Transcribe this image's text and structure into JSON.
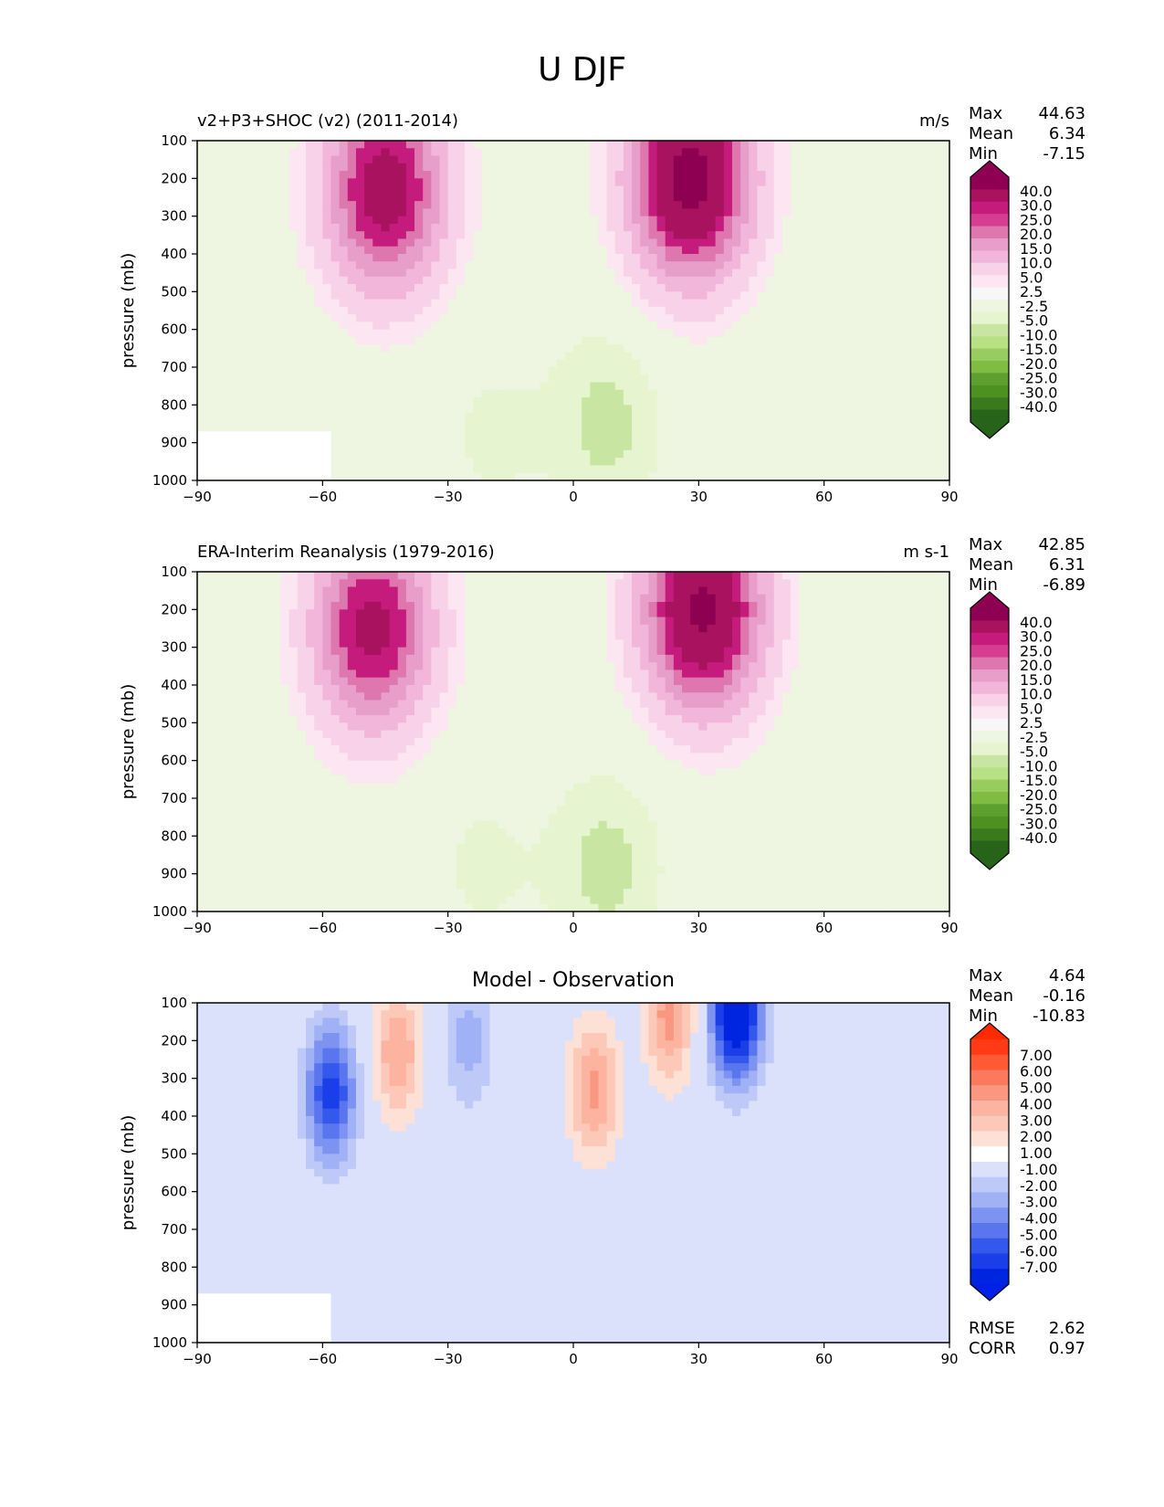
{
  "figure": {
    "title": "U DJF"
  },
  "panels": [
    {
      "title": "v2+P3+SHOC (v2) (2011-2014)",
      "units": "m/s",
      "stats": [
        {
          "label": "Max",
          "value": "44.63"
        },
        {
          "label": "Mean",
          "value": "6.34"
        },
        {
          "label": "Min",
          "value": "-7.15"
        }
      ],
      "colorbar": {
        "labels": [
          "40.0",
          "30.0",
          "25.0",
          "20.0",
          "15.0",
          "10.0",
          "5.0",
          "2.5",
          "-2.5",
          "-5.0",
          "-10.0",
          "-15.0",
          "-20.0",
          "-25.0",
          "-30.0",
          "-40.0"
        ],
        "colors": [
          "#8e0152",
          "#a8125e",
          "#c51b7d",
          "#d53d91",
          "#de77ae",
          "#e79fc9",
          "#f1b6da",
          "#f8d2e8",
          "#fbe6f1",
          "#f7f7f7",
          "#eef5e1",
          "#e6f5d0",
          "#c8e6a1",
          "#b8e186",
          "#98cc5f",
          "#7fbc41",
          "#5f9e30",
          "#4d9221",
          "#3a7a1c",
          "#276419"
        ],
        "extend_top": "#8e0152",
        "extend_bottom": "#276419"
      }
    },
    {
      "title": "ERA-Interim Reanalysis (1979-2016)",
      "units": "m s-1",
      "stats": [
        {
          "label": "Max",
          "value": "42.85"
        },
        {
          "label": "Mean",
          "value": "6.31"
        },
        {
          "label": "Min",
          "value": "-6.89"
        }
      ],
      "colorbar": {
        "labels": [
          "40.0",
          "30.0",
          "25.0",
          "20.0",
          "15.0",
          "10.0",
          "5.0",
          "2.5",
          "-2.5",
          "-5.0",
          "-10.0",
          "-15.0",
          "-20.0",
          "-25.0",
          "-30.0",
          "-40.0"
        ],
        "colors": [
          "#8e0152",
          "#a8125e",
          "#c51b7d",
          "#d53d91",
          "#de77ae",
          "#e79fc9",
          "#f1b6da",
          "#f8d2e8",
          "#fbe6f1",
          "#f7f7f7",
          "#eef5e1",
          "#e6f5d0",
          "#c8e6a1",
          "#b8e186",
          "#98cc5f",
          "#7fbc41",
          "#5f9e30",
          "#4d9221",
          "#3a7a1c",
          "#276419"
        ],
        "extend_top": "#8e0152",
        "extend_bottom": "#276419"
      }
    },
    {
      "title": "Model - Observation",
      "units": "",
      "stats": [
        {
          "label": "Max",
          "value": "4.64"
        },
        {
          "label": "Mean",
          "value": "-0.16"
        },
        {
          "label": "Min",
          "value": "-10.83"
        }
      ],
      "extra": [
        {
          "label": "RMSE",
          "value": "2.62"
        },
        {
          "label": "CORR",
          "value": "0.97"
        }
      ],
      "colorbar": {
        "labels": [
          "7.00",
          "6.00",
          "5.00",
          "4.00",
          "3.00",
          "2.00",
          "1.00",
          "-1.00",
          "-2.00",
          "-3.00",
          "-4.00",
          "-5.00",
          "-6.00",
          "-7.00"
        ],
        "colors": [
          "#ff3a14",
          "#ff5a36",
          "#fb7a5e",
          "#fa9780",
          "#fcb3a0",
          "#fcc8b8",
          "#fde0d6",
          "#ffffff",
          "#dbe1fb",
          "#bec9f8",
          "#a0b1f5",
          "#7d93f2",
          "#5a76ef",
          "#3458ec",
          "#1a3ee8",
          "#0025e0"
        ],
        "extend_top": "#ff2a00",
        "extend_bottom": "#0020e8"
      }
    }
  ],
  "chart_data": [
    {
      "type": "contour",
      "title": "v2+P3+SHOC (v2) (2011-2014)",
      "xlabel": "",
      "ylabel": "pressure (mb)",
      "x_ticks": [
        -90,
        -60,
        -30,
        0,
        30,
        60,
        90
      ],
      "y_ticks": [
        100,
        200,
        300,
        400,
        500,
        600,
        700,
        800,
        900,
        1000
      ],
      "xlim": [
        -90,
        90
      ],
      "ylim": [
        1000,
        100
      ],
      "levels": [
        -40,
        -30,
        -25,
        -20,
        -15,
        -10,
        -5,
        -2.5,
        2.5,
        5,
        10,
        15,
        20,
        25,
        30,
        40
      ],
      "units": "m/s",
      "max": 44.63,
      "mean": 6.34,
      "min": -7.15,
      "features": [
        {
          "label": "southern jet",
          "lat": -45,
          "p": 230,
          "value": 35
        },
        {
          "label": "northern jet",
          "lat": 28,
          "p": 200,
          "value": 44
        },
        {
          "label": "tropical easterlies",
          "lat": 8,
          "p": 850,
          "value": -6
        },
        {
          "label": "subtropical easterlies",
          "lat": -20,
          "p": 880,
          "value": -3
        }
      ]
    },
    {
      "type": "contour",
      "title": "ERA-Interim Reanalysis (1979-2016)",
      "xlabel": "",
      "ylabel": "pressure (mb)",
      "x_ticks": [
        -90,
        -60,
        -30,
        0,
        30,
        60,
        90
      ],
      "y_ticks": [
        100,
        200,
        300,
        400,
        500,
        600,
        700,
        800,
        900,
        1000
      ],
      "xlim": [
        -90,
        90
      ],
      "ylim": [
        1000,
        100
      ],
      "levels": [
        -40,
        -30,
        -25,
        -20,
        -15,
        -10,
        -5,
        -2.5,
        2.5,
        5,
        10,
        15,
        20,
        25,
        30,
        40
      ],
      "units": "m s-1",
      "max": 42.85,
      "mean": 6.31,
      "min": -6.89,
      "features": [
        {
          "label": "southern jet",
          "lat": -48,
          "p": 250,
          "value": 33
        },
        {
          "label": "northern jet",
          "lat": 31,
          "p": 200,
          "value": 42
        },
        {
          "label": "tropical easterlies",
          "lat": 8,
          "p": 880,
          "value": -6
        },
        {
          "label": "subtropical easterlies",
          "lat": -22,
          "p": 880,
          "value": -3
        }
      ]
    },
    {
      "type": "contour",
      "title": "Model - Observation",
      "xlabel": "",
      "ylabel": "pressure (mb)",
      "x_ticks": [
        -90,
        -60,
        -30,
        0,
        30,
        60,
        90
      ],
      "y_ticks": [
        100,
        200,
        300,
        400,
        500,
        600,
        700,
        800,
        900,
        1000
      ],
      "xlim": [
        -90,
        90
      ],
      "ylim": [
        1000,
        100
      ],
      "levels": [
        -7,
        -6,
        -5,
        -4,
        -3,
        -2,
        -1,
        1,
        2,
        3,
        4,
        5,
        6,
        7
      ],
      "max": 4.64,
      "mean": -0.16,
      "min": -10.83,
      "rmse": 2.62,
      "corr": 0.97,
      "features": [
        {
          "label": "positive diff",
          "lat": 5,
          "p": 330,
          "value": 4.3
        },
        {
          "label": "positive diff",
          "lat": 23,
          "p": 130,
          "value": 4.5
        },
        {
          "label": "positive diff",
          "lat": -42,
          "p": 230,
          "value": 4
        },
        {
          "label": "negative diff",
          "lat": 39,
          "p": 120,
          "value": -10
        },
        {
          "label": "negative diff",
          "lat": -58,
          "p": 340,
          "value": -6.5
        },
        {
          "label": "negative diff",
          "lat": -25,
          "p": 200,
          "value": -2.5
        }
      ]
    }
  ]
}
